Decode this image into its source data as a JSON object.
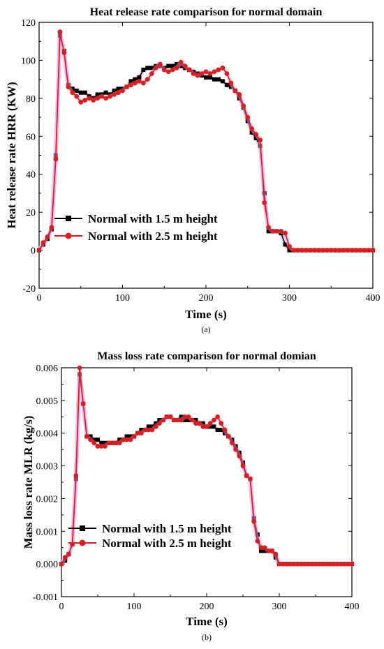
{
  "chart_data": [
    {
      "type": "line",
      "title": "Heat release rate comparison for normal domain",
      "xlabel": "Time (s)",
      "ylabel": "Heat release rate HRR (KW)",
      "caption": "(a)",
      "xlim": [
        0,
        400
      ],
      "ylim": [
        -20,
        120
      ],
      "xticks": [
        "0",
        "100",
        "200",
        "300",
        "400"
      ],
      "yticks": [
        "-20",
        "0",
        "20",
        "40",
        "60",
        "80",
        "100",
        "120"
      ],
      "legend_position": "lower-left",
      "grid": false,
      "series": [
        {
          "name": "Normal with 1.5 m height",
          "marker": "square",
          "color": "#000000",
          "x": [
            0,
            5,
            10,
            15,
            20,
            25,
            30,
            35,
            40,
            45,
            50,
            55,
            60,
            65,
            70,
            75,
            80,
            85,
            90,
            95,
            100,
            105,
            110,
            115,
            120,
            125,
            130,
            135,
            140,
            145,
            150,
            155,
            160,
            165,
            170,
            175,
            180,
            185,
            190,
            195,
            200,
            205,
            210,
            215,
            220,
            225,
            230,
            235,
            240,
            245,
            250,
            255,
            260,
            265,
            270,
            275,
            280,
            285,
            290,
            295,
            300,
            305,
            310,
            315,
            320,
            325,
            330,
            335,
            340,
            345,
            350,
            355,
            360,
            365,
            370,
            375,
            380,
            385,
            390,
            395,
            400
          ],
          "y": [
            0,
            3,
            6,
            11,
            50,
            113,
            105,
            87,
            85,
            84,
            83,
            83,
            81,
            80,
            82,
            82,
            83,
            82,
            84,
            85,
            85,
            86,
            89,
            90,
            91,
            95,
            96,
            96,
            97,
            97,
            96,
            97,
            97,
            98,
            97,
            96,
            95,
            94,
            93,
            92,
            91,
            91,
            90,
            90,
            89,
            87,
            86,
            84,
            80,
            75,
            68,
            62,
            59,
            55,
            30,
            10,
            10,
            10,
            9,
            3,
            0,
            0,
            0,
            0,
            0,
            0,
            0,
            0,
            0,
            0,
            0,
            0,
            0,
            0,
            0,
            0,
            0,
            0,
            0,
            0,
            0
          ]
        },
        {
          "name": "Normal with 2.5 m height",
          "marker": "circle",
          "color": "#d42020",
          "x": [
            0,
            5,
            10,
            15,
            20,
            25,
            30,
            35,
            40,
            45,
            50,
            55,
            60,
            65,
            70,
            75,
            80,
            85,
            90,
            95,
            100,
            105,
            110,
            115,
            120,
            125,
            130,
            135,
            140,
            145,
            150,
            155,
            160,
            165,
            170,
            175,
            180,
            185,
            190,
            195,
            200,
            205,
            210,
            215,
            220,
            225,
            230,
            235,
            240,
            245,
            250,
            255,
            260,
            265,
            270,
            275,
            280,
            285,
            290,
            295,
            300,
            305,
            310,
            315,
            320,
            325,
            330,
            335,
            340,
            345,
            350,
            355,
            360,
            365,
            370,
            375,
            380,
            385,
            390,
            395,
            400
          ],
          "y": [
            0,
            4,
            7,
            12,
            48,
            115,
            104,
            86,
            83,
            81,
            78,
            79,
            80,
            79,
            80,
            81,
            80,
            81,
            82,
            83,
            84,
            86,
            87,
            88,
            89,
            88,
            90,
            93,
            96,
            98,
            95,
            94,
            95,
            96,
            99,
            97,
            95,
            93,
            92,
            93,
            94,
            93,
            94,
            95,
            96,
            93,
            88,
            84,
            82,
            76,
            70,
            64,
            61,
            58,
            25,
            12,
            10,
            10,
            10,
            9,
            2,
            0,
            0,
            0,
            0,
            0,
            0,
            0,
            0,
            0,
            0,
            0,
            0,
            0,
            0,
            0,
            0,
            0,
            0,
            0,
            0
          ]
        }
      ]
    },
    {
      "type": "line",
      "title": "Mass loss rate comparison for normal domian",
      "xlabel": "Time (s)",
      "ylabel": "Mass loss rate MLR (kg/s)",
      "caption": "(b)",
      "xlim": [
        0,
        400
      ],
      "ylim": [
        -0.001,
        0.006
      ],
      "xticks": [
        "0",
        "100",
        "200",
        "300",
        "400"
      ],
      "yticks": [
        "-0.001",
        "0.000",
        "0.001",
        "0.002",
        "0.003",
        "0.004",
        "0.005",
        "0.006"
      ],
      "legend_position": "lower-left",
      "grid": false,
      "series": [
        {
          "name": "Normal with 1.5 m height",
          "marker": "square",
          "color": "#000000",
          "x": [
            0,
            5,
            10,
            15,
            20,
            25,
            30,
            35,
            40,
            45,
            50,
            55,
            60,
            65,
            70,
            75,
            80,
            85,
            90,
            95,
            100,
            105,
            110,
            115,
            120,
            125,
            130,
            135,
            140,
            145,
            150,
            155,
            160,
            165,
            170,
            175,
            180,
            185,
            190,
            195,
            200,
            205,
            210,
            215,
            220,
            225,
            230,
            235,
            240,
            245,
            250,
            255,
            260,
            265,
            270,
            275,
            280,
            285,
            290,
            295,
            300,
            305,
            310,
            315,
            320,
            325,
            330,
            335,
            340,
            345,
            350,
            355,
            360,
            365,
            370,
            375,
            380,
            385,
            390,
            395,
            400
          ],
          "y": [
            0,
            0.0001,
            0.0003,
            0.0006,
            0.0026,
            0.0058,
            0.0049,
            0.0039,
            0.0039,
            0.0038,
            0.0038,
            0.0037,
            0.0037,
            0.0037,
            0.0037,
            0.0037,
            0.0038,
            0.0038,
            0.0039,
            0.0039,
            0.0039,
            0.004,
            0.0041,
            0.0041,
            0.0042,
            0.0042,
            0.0043,
            0.0044,
            0.0044,
            0.0045,
            0.0045,
            0.0044,
            0.0044,
            0.0045,
            0.0044,
            0.0044,
            0.0044,
            0.0044,
            0.0043,
            0.0043,
            0.0042,
            0.0042,
            0.0042,
            0.0041,
            0.0041,
            0.004,
            0.0039,
            0.0038,
            0.0036,
            0.0034,
            0.0031,
            0.0027,
            0.0026,
            0.0014,
            0.0009,
            0.0004,
            0.0004,
            0.0004,
            0.0004,
            0.0002,
            0,
            0,
            0,
            0,
            0,
            0,
            0,
            0,
            0,
            0,
            0,
            0,
            0,
            0,
            0,
            0,
            0,
            0,
            0,
            0,
            0
          ]
        },
        {
          "name": "Normal with 2.5 m height",
          "marker": "circle",
          "color": "#d42020",
          "x": [
            0,
            5,
            10,
            15,
            20,
            25,
            30,
            35,
            40,
            45,
            50,
            55,
            60,
            65,
            70,
            75,
            80,
            85,
            90,
            95,
            100,
            105,
            110,
            115,
            120,
            125,
            130,
            135,
            140,
            145,
            150,
            155,
            160,
            165,
            170,
            175,
            180,
            185,
            190,
            195,
            200,
            205,
            210,
            215,
            220,
            225,
            230,
            235,
            240,
            245,
            250,
            255,
            260,
            265,
            270,
            275,
            280,
            285,
            290,
            295,
            300,
            305,
            310,
            315,
            320,
            325,
            330,
            335,
            340,
            345,
            350,
            355,
            360,
            365,
            370,
            375,
            380,
            385,
            390,
            395,
            400
          ],
          "y": [
            0,
            0.0002,
            0.0003,
            0.0006,
            0.0027,
            0.006,
            0.0049,
            0.0039,
            0.0038,
            0.0037,
            0.0036,
            0.0036,
            0.0036,
            0.0037,
            0.0037,
            0.0037,
            0.0037,
            0.0038,
            0.0038,
            0.0038,
            0.0039,
            0.004,
            0.004,
            0.0041,
            0.0041,
            0.0041,
            0.0042,
            0.0043,
            0.0044,
            0.0045,
            0.0045,
            0.0044,
            0.0044,
            0.0044,
            0.0045,
            0.0045,
            0.0044,
            0.0043,
            0.0043,
            0.0042,
            0.0042,
            0.0043,
            0.0044,
            0.0045,
            0.0043,
            0.0041,
            0.0039,
            0.0037,
            0.0035,
            0.0033,
            0.003,
            0.0027,
            0.0026,
            0.0013,
            0.0007,
            0.0005,
            0.0005,
            0.0004,
            0.0004,
            0.0003,
            0,
            0,
            0,
            0,
            0,
            0,
            0,
            0,
            0,
            0,
            0,
            0,
            0,
            0,
            0,
            0,
            0,
            0,
            0,
            0,
            0
          ]
        }
      ]
    }
  ]
}
